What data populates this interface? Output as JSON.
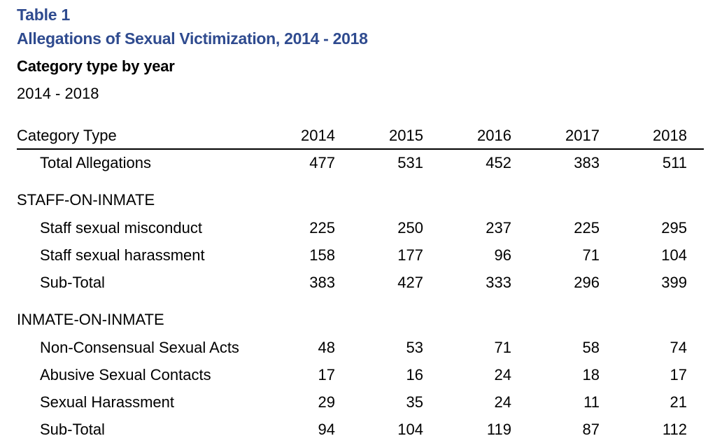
{
  "header": {
    "table_number": "Table 1",
    "title": "Allegations of Sexual Victimization, 2014 - 2018",
    "heading": "Category type by year",
    "range": "2014 - 2018"
  },
  "colors": {
    "title_color": "#2f4b8f"
  },
  "table": {
    "category_header": "Category Type",
    "years": [
      "2014",
      "2015",
      "2016",
      "2017",
      "2018"
    ],
    "total": {
      "label": "Total Allegations",
      "values": [
        "477",
        "531",
        "452",
        "383",
        "511"
      ]
    },
    "sections": [
      {
        "name": "STAFF-ON-INMATE",
        "rows": [
          {
            "label": "Staff sexual misconduct",
            "values": [
              "225",
              "250",
              "237",
              "225",
              "295"
            ]
          },
          {
            "label": "Staff sexual harassment",
            "values": [
              "158",
              "177",
              "96",
              "71",
              "104"
            ]
          },
          {
            "label": "Sub-Total",
            "values": [
              "383",
              "427",
              "333",
              "296",
              "399"
            ]
          }
        ]
      },
      {
        "name": "INMATE-ON-INMATE",
        "rows": [
          {
            "label": "Non-Consensual Sexual Acts",
            "values": [
              "48",
              "53",
              "71",
              "58",
              "74"
            ]
          },
          {
            "label": "Abusive Sexual Contacts",
            "values": [
              "17",
              "16",
              "24",
              "18",
              "17"
            ]
          },
          {
            "label": "Sexual Harassment",
            "values": [
              "29",
              "35",
              "24",
              "11",
              "21"
            ]
          },
          {
            "label": "Sub-Total",
            "values": [
              "94",
              "104",
              "119",
              "87",
              "112"
            ]
          }
        ]
      }
    ]
  }
}
